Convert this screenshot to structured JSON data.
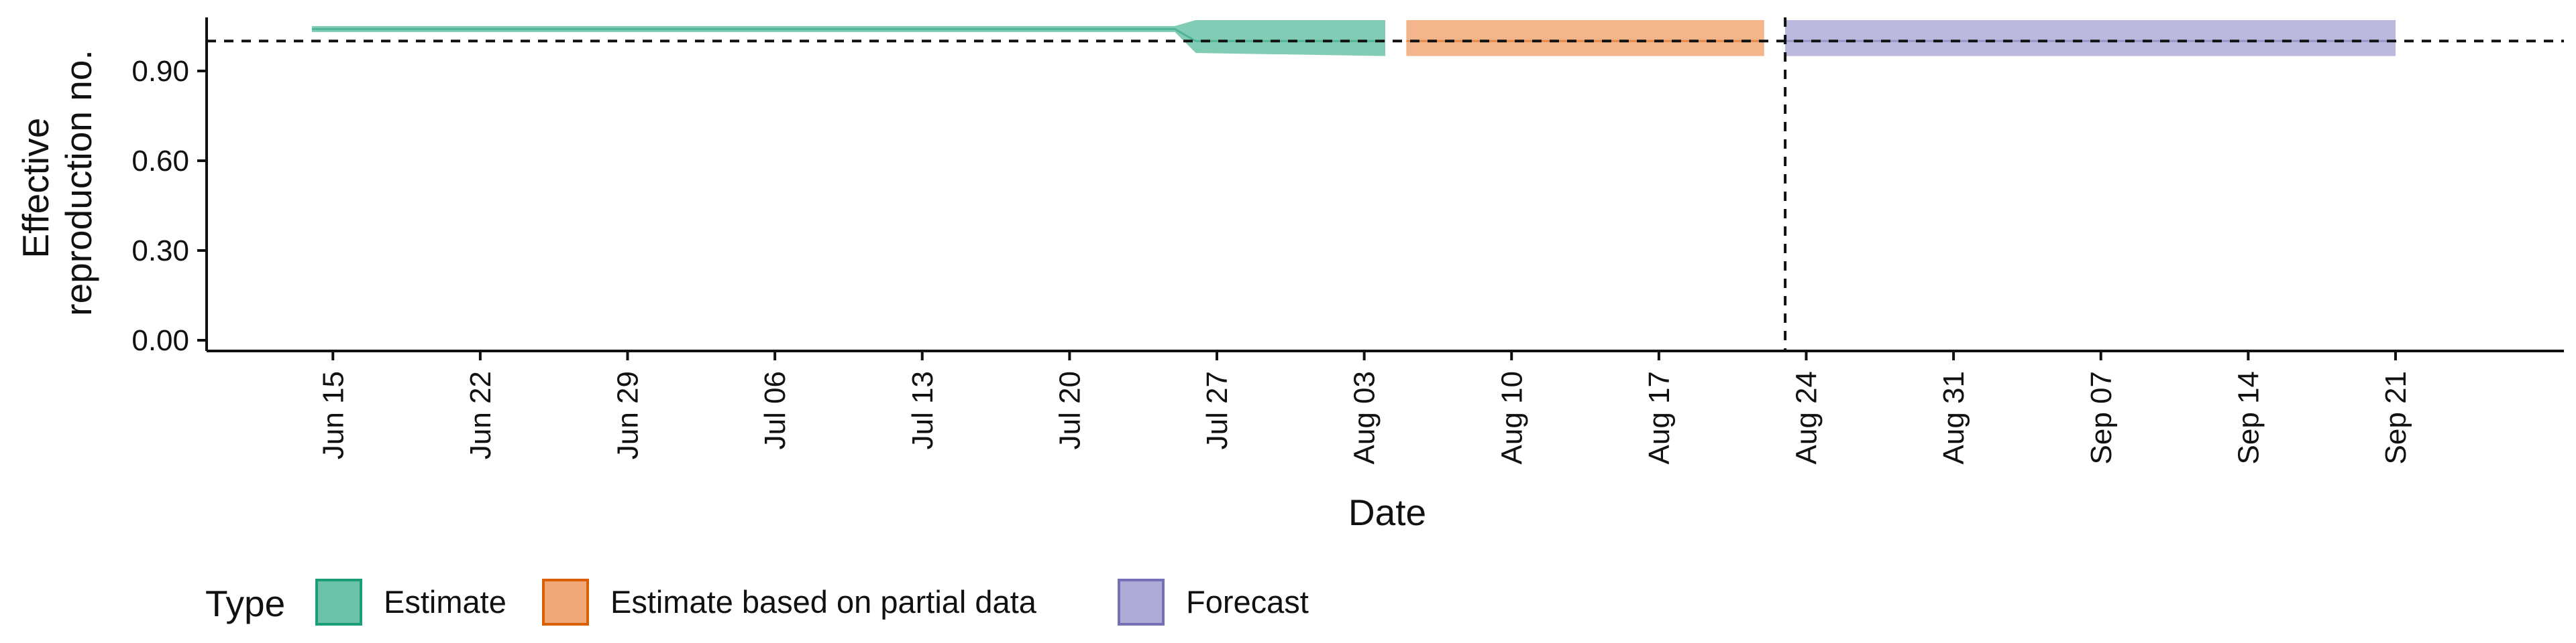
{
  "chart_data": {
    "type": "area",
    "title": "",
    "xlabel": "Date",
    "ylabel": [
      "Effective",
      "reproduction no."
    ],
    "x_range": [
      "2020-06-09",
      "2020-09-29"
    ],
    "ylim": [
      0,
      1.07
    ],
    "y_ticks": [
      {
        "value": 0.0,
        "label": "0.00"
      },
      {
        "value": 0.3,
        "label": "0.30"
      },
      {
        "value": 0.6,
        "label": "0.60"
      },
      {
        "value": 0.9,
        "label": "0.90"
      }
    ],
    "x_ticks": [
      {
        "date": "2020-06-15",
        "label": "Jun 15"
      },
      {
        "date": "2020-06-22",
        "label": "Jun 22"
      },
      {
        "date": "2020-06-29",
        "label": "Jun 29"
      },
      {
        "date": "2020-07-06",
        "label": "Jul 06"
      },
      {
        "date": "2020-07-13",
        "label": "Jul 13"
      },
      {
        "date": "2020-07-20",
        "label": "Jul 20"
      },
      {
        "date": "2020-07-27",
        "label": "Jul 27"
      },
      {
        "date": "2020-08-03",
        "label": "Aug 03"
      },
      {
        "date": "2020-08-10",
        "label": "Aug 10"
      },
      {
        "date": "2020-08-17",
        "label": "Aug 17"
      },
      {
        "date": "2020-08-24",
        "label": "Aug 24"
      },
      {
        "date": "2020-08-31",
        "label": "Aug 31"
      },
      {
        "date": "2020-09-07",
        "label": "Sep 07"
      },
      {
        "date": "2020-09-14",
        "label": "Sep 14"
      },
      {
        "date": "2020-09-21",
        "label": "Sep 21"
      }
    ],
    "reference_line_y": 1.0,
    "reference_line_date": "2020-08-23",
    "series": [
      {
        "name": "Estimate",
        "color": "#1b9e77",
        "fill": "#6cc3a8",
        "points": [
          {
            "date": "2020-06-14",
            "lower": 1.03,
            "upper": 1.05,
            "median": 1.04
          },
          {
            "date": "2020-07-25",
            "lower": 1.03,
            "upper": 1.05,
            "median": 1.04
          },
          {
            "date": "2020-07-26",
            "lower": 0.96,
            "upper": 1.07,
            "median": 1.0
          },
          {
            "date": "2020-08-04",
            "lower": 0.95,
            "upper": 1.07,
            "median": 1.0
          }
        ]
      },
      {
        "name": "Estimate based on partial data",
        "color": "#d95f02",
        "fill": "#f0a878",
        "points": [
          {
            "date": "2020-08-05",
            "lower": 0.95,
            "upper": 1.07,
            "median": 1.0
          },
          {
            "date": "2020-08-22",
            "lower": 0.95,
            "upper": 1.07,
            "median": 1.0
          }
        ]
      },
      {
        "name": "Forecast",
        "color": "#7570b3",
        "fill": "#aeabd6",
        "points": [
          {
            "date": "2020-08-23",
            "lower": 0.95,
            "upper": 1.07,
            "median": 1.0
          },
          {
            "date": "2020-09-21",
            "lower": 0.95,
            "upper": 1.07,
            "median": 1.0
          }
        ]
      }
    ],
    "legend": {
      "title": "Type",
      "position": "bottom-left",
      "items": [
        {
          "label": "Estimate",
          "fill": "#6cc3a8",
          "border": "#1b9e77"
        },
        {
          "label": "Estimate based on partial data",
          "fill": "#f0a878",
          "border": "#d95f02"
        },
        {
          "label": "Forecast",
          "fill": "#aeabd6",
          "border": "#7570b3"
        }
      ]
    },
    "grid": false
  }
}
